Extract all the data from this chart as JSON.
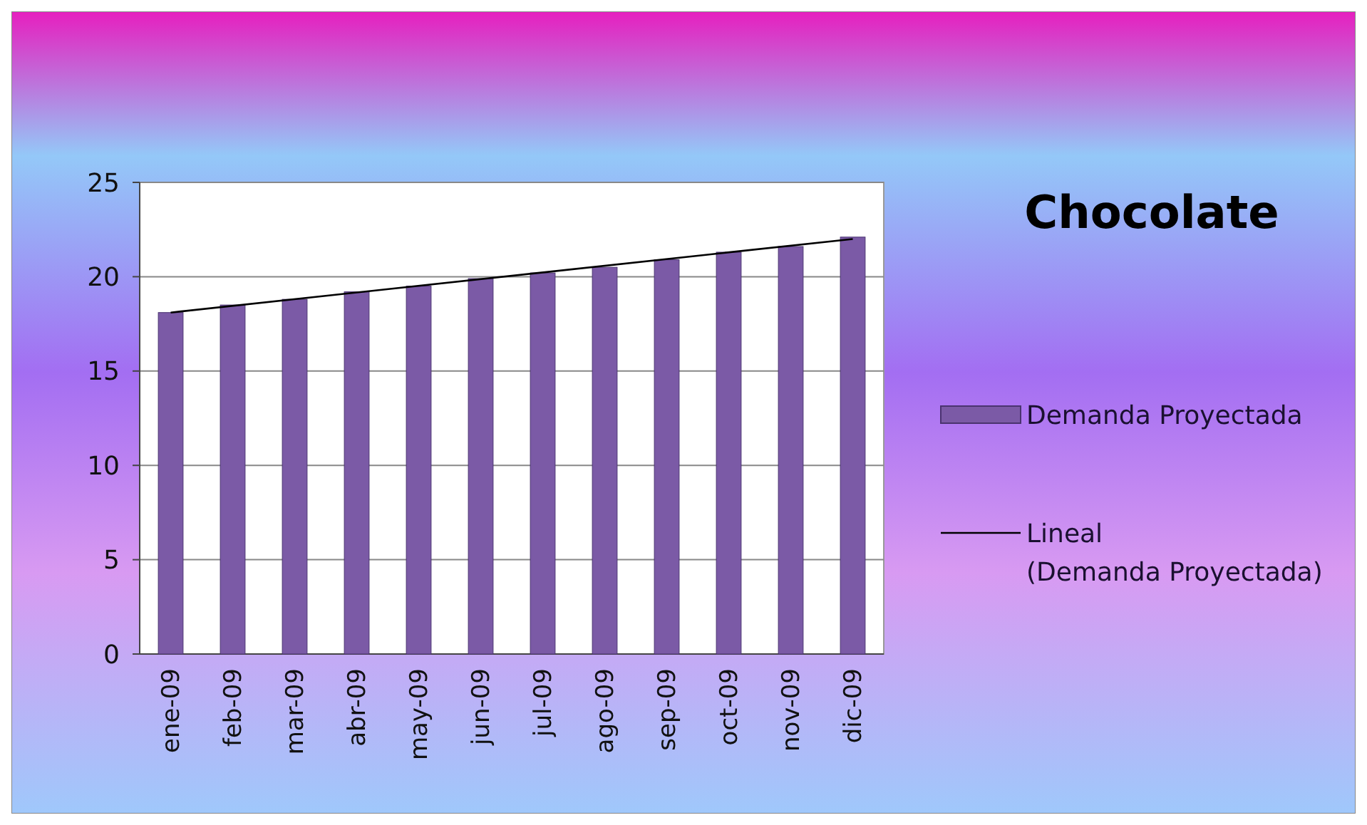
{
  "chart_data": {
    "type": "bar",
    "title": "Chocolate",
    "categories": [
      "ene-09",
      "feb-09",
      "mar-09",
      "abr-09",
      "may-09",
      "jun-09",
      "jul-09",
      "ago-09",
      "sep-09",
      "oct-09",
      "nov-09",
      "dic-09"
    ],
    "series": [
      {
        "name": "Demanda Proyectada",
        "color": "#7b5aa6",
        "values": [
          18.1,
          18.5,
          18.8,
          19.2,
          19.5,
          19.9,
          20.2,
          20.5,
          20.9,
          21.3,
          21.6,
          22.1
        ]
      },
      {
        "name": "Lineal (Demanda Proyectada)",
        "type": "line",
        "color": "#000000",
        "x": [
          "ene-09",
          "dic-09"
        ],
        "values": [
          18.1,
          22.0
        ]
      }
    ],
    "ylim": [
      0,
      25
    ],
    "yticks": [
      0,
      5,
      10,
      15,
      20,
      25
    ],
    "grid": "y",
    "legend": "right"
  }
}
